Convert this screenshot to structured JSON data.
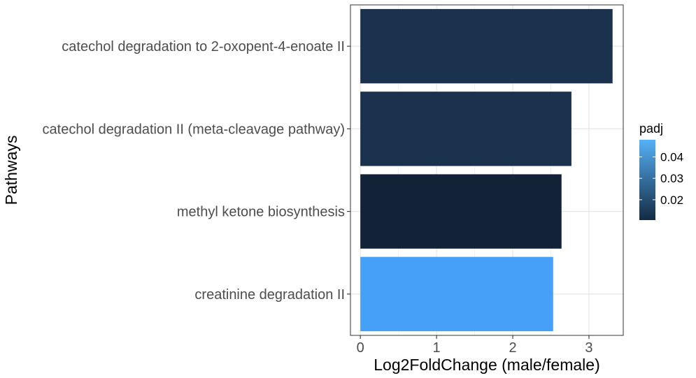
{
  "chart_data": {
    "type": "bar",
    "orientation": "horizontal",
    "categories": [
      "catechol degradation to 2-oxopent-4-enoate II",
      "catechol degradation II (meta-cleavage pathway)",
      "methyl ketone biosynthesis",
      "creatinine degradation II"
    ],
    "values": [
      3.31,
      2.77,
      2.64,
      2.53
    ],
    "padj": [
      0.0155,
      0.0158,
      0.0105,
      0.0475
    ],
    "bar_colors": [
      "#1b324f",
      "#1b324f",
      "#132337",
      "#47a0f7"
    ],
    "xlabel": "Log2FoldChange (male/female)",
    "ylabel": "Pathways",
    "xlim": [
      -0.13,
      3.45
    ],
    "x_ticks": [
      0,
      1,
      2,
      3
    ],
    "grid": true,
    "legend": {
      "title": "padj",
      "position": "right",
      "min": 0.0105,
      "max": 0.048,
      "ticks": [
        0.02,
        0.03,
        0.04
      ],
      "tick_labels": [
        "0.02",
        "0.03",
        "0.04"
      ],
      "color_low": "#132b43",
      "color_high": "#56b1f7"
    }
  }
}
